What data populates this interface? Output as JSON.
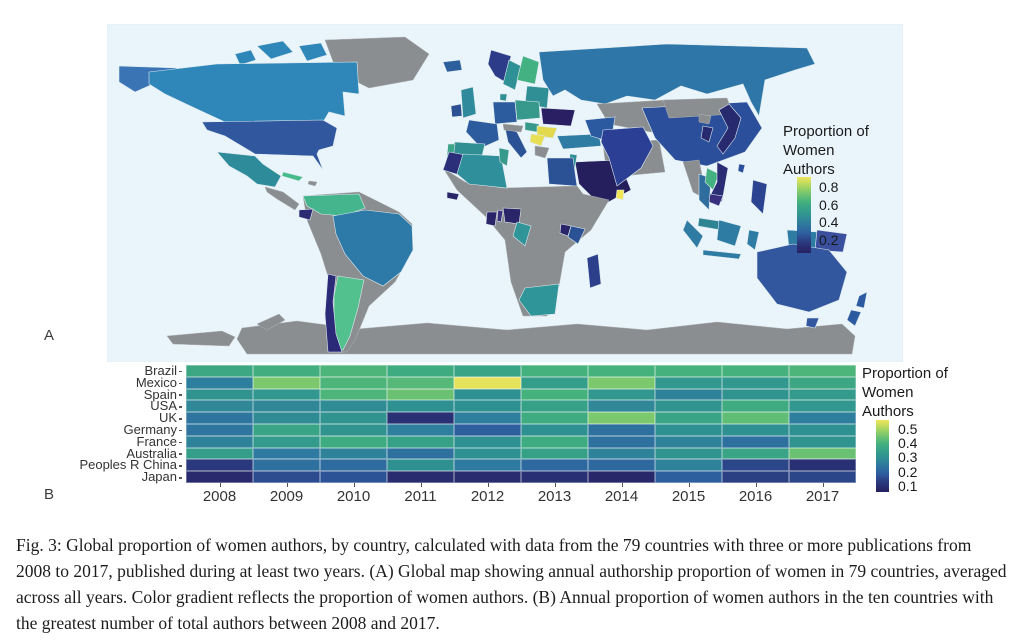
{
  "figure": {
    "panel_a_label": "A",
    "panel_b_label": "B",
    "caption": "Fig. 3: Global proportion of women authors, by country, calculated with data from the 79 countries with three or more publications from 2008 to 2017, published during at least two years. (A) Global map showing annual authorship proportion of women in 79 countries, averaged across all years. Color gradient reflects the proportion of women authors. (B) Annual proportion of women authors in the ten countries with the greatest number of total authors between 2008 and 2017.",
    "text_color": "#1c1c1c"
  },
  "palette_stops": [
    [
      0.0,
      "#262163"
    ],
    [
      0.12,
      "#2a3377"
    ],
    [
      0.25,
      "#2d5c9e"
    ],
    [
      0.38,
      "#2e7aa0"
    ],
    [
      0.48,
      "#2f9092"
    ],
    [
      0.58,
      "#37a188"
    ],
    [
      0.68,
      "#45b17d"
    ],
    [
      0.8,
      "#7cc96d"
    ],
    [
      0.9,
      "#b8d95f"
    ],
    [
      1.0,
      "#f0e65a"
    ]
  ],
  "map": {
    "legend": {
      "title_lines": [
        "Proportion of",
        "Women",
        "Authors"
      ],
      "ticks": [
        0.8,
        0.6,
        0.4,
        0.2
      ],
      "domain": [
        0.05,
        0.92
      ]
    },
    "ocean_color": "#e9f5fb",
    "no_data_color": "#8b8e90",
    "region_colors": {
      "ocean": "#e9f5fb",
      "antarctica": "#8b8e90",
      "greenland": "#8b8e90",
      "canada-islands": "#2e86b9",
      "alaska": "#3a74b5",
      "canada": "#2e86b9",
      "usa": "#31589f",
      "mexico": "#2e8b99",
      "central-america": "#8b8e90",
      "cuba": "#45bb8a",
      "hispaniola": "#8b8e90",
      "sa-base": "#8b8e90",
      "colombia-venezuela": "#44b58c",
      "ecuador": "#2b2a72",
      "brazil": "#2d7aa9",
      "argentina": "#52c18e",
      "chile": "#2b2a78",
      "iceland": "#2c5f9c",
      "norway": "#2c3c88",
      "sweden": "#2f9095",
      "finland": "#43b182",
      "baltics": "#2f8f95",
      "uk": "#2f8b9b",
      "ireland": "#2c4f94",
      "denmark": "#2f9095",
      "germany": "#2d5c9e",
      "poland": "#37998c",
      "france": "#2d5c9e",
      "spain": "#2f8f93",
      "portugal": "#3ca489",
      "italy": "#2c5296",
      "alpine": "#8b8e90",
      "hungary": "#37998c",
      "ukraine": "#2a1f63",
      "romania": "#e3d94f",
      "balkans": "#e8df55",
      "greece": "#8b8e90",
      "russia": "#2e76a8",
      "kazakhstan": "#8b8e90",
      "turkey": "#2e7ba3",
      "iran-region": "#8b8e90",
      "saudi": "#251f5e",
      "levant": "#2f8f93",
      "egypt": "#2c5296",
      "morocco": "#2b2f7a",
      "algeria": "#2f8f9b",
      "tunisia": "#37998c",
      "africa-base": "#8b8e90",
      "nigeria": "#2a2569",
      "ghana": "#2a2569",
      "benin": "#3a2f7e",
      "senegal": "#2a2569",
      "cameroon-gabon": "#2f9599",
      "uganda": "#2a2569",
      "kenya": "#2c5296",
      "south-africa": "#2f9599",
      "madagascar": "#2c3f8a",
      "pakistan": "#2c5aa0",
      "india": "#2b4094",
      "sri-lanka": "#f0e658",
      "china": "#2c4f9b",
      "mongolia": "#8b8e90",
      "myanmar": "#8b8e90",
      "thailand": "#2e6d9e",
      "laos": "#44b182",
      "vietnam": "#2b2d74",
      "cambodia": "#3a2f7e",
      "malaysia": "#2f8494",
      "sumatra": "#2e7ba3",
      "borneo": "#2e7ba3",
      "java": "#2e7ba3",
      "sulawesi": "#2e7ba3",
      "west-papua": "#2e7ba3",
      "png": "#3a4f9e",
      "philippines": "#2c4391",
      "taiwan": "#2c4f9b",
      "nkorea": "#8b8e90",
      "skorea": "#272a6e",
      "japan": "#272a6e",
      "australia": "#32579f",
      "tasmania": "#32579f",
      "new-zealand": "#2c5aa0"
    }
  },
  "chart_data": {
    "type": "heatmap",
    "title": "Annual proportion of women authors by country",
    "xlabel": "",
    "ylabel": "",
    "categories": [
      "2008",
      "2009",
      "2010",
      "2011",
      "2012",
      "2013",
      "2014",
      "2015",
      "2016",
      "2017"
    ],
    "series": [
      {
        "name": "Brazil",
        "values": [
          0.37,
          0.39,
          0.41,
          0.38,
          0.36,
          0.4,
          0.4,
          0.4,
          0.4,
          0.41
        ]
      },
      {
        "name": "Mexico",
        "values": [
          0.26,
          0.46,
          0.41,
          0.42,
          0.55,
          0.34,
          0.46,
          0.32,
          0.32,
          0.37
        ]
      },
      {
        "name": "Spain",
        "values": [
          0.31,
          0.32,
          0.41,
          0.44,
          0.3,
          0.4,
          0.32,
          0.27,
          0.31,
          0.33
        ]
      },
      {
        "name": "USA",
        "values": [
          0.28,
          0.28,
          0.29,
          0.3,
          0.3,
          0.35,
          0.28,
          0.31,
          0.38,
          0.32
        ]
      },
      {
        "name": "UK",
        "values": [
          0.24,
          0.29,
          0.31,
          0.11,
          0.26,
          0.38,
          0.46,
          0.36,
          0.43,
          0.26
        ]
      },
      {
        "name": "Germany",
        "values": [
          0.24,
          0.36,
          0.31,
          0.26,
          0.19,
          0.3,
          0.23,
          0.3,
          0.3,
          0.3
        ]
      },
      {
        "name": "France",
        "values": [
          0.27,
          0.33,
          0.38,
          0.35,
          0.3,
          0.38,
          0.23,
          0.27,
          0.23,
          0.31
        ]
      },
      {
        "name": "Australia",
        "values": [
          0.34,
          0.25,
          0.27,
          0.23,
          0.3,
          0.35,
          0.27,
          0.31,
          0.36,
          0.44
        ]
      },
      {
        "name": "Peoples R China",
        "values": [
          0.13,
          0.23,
          0.22,
          0.3,
          0.25,
          0.21,
          0.21,
          0.27,
          0.15,
          0.11
        ]
      },
      {
        "name": "Japan",
        "values": [
          0.09,
          0.16,
          0.17,
          0.1,
          0.1,
          0.11,
          0.08,
          0.19,
          0.14,
          0.15
        ]
      }
    ],
    "scale_domain": [
      0.06,
      0.56
    ],
    "legend": {
      "title_lines": [
        "Proportion of",
        "Women",
        "Authors"
      ],
      "ticks": [
        0.5,
        0.4,
        0.3,
        0.2,
        0.1
      ],
      "domain": [
        0.06,
        0.56
      ],
      "position": "right"
    },
    "grid": false
  }
}
